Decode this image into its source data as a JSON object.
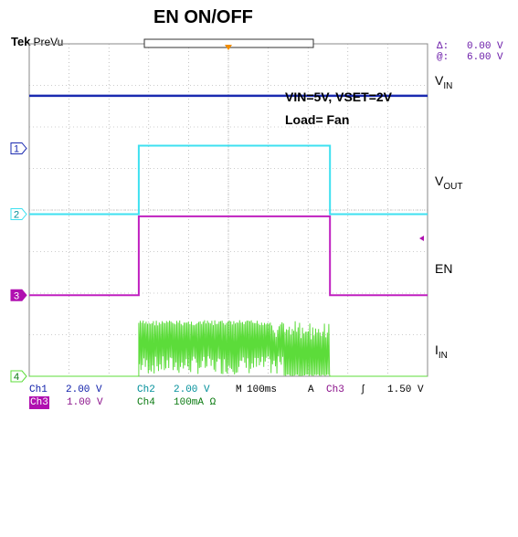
{
  "title": "EN ON/OFF",
  "scope": {
    "brand": "Tek",
    "mode": "PreVu",
    "delta_symbol": "Δ:",
    "delta_value": "0.00 V",
    "at_symbol": "@:",
    "at_value": "6.00 V"
  },
  "colors": {
    "ch1": "#1a2ab0",
    "ch2": "#3ee0f0",
    "ch3": "#c020c0",
    "ch4": "#5cdc3a",
    "trigger": "#f08c00",
    "grid": "#999999"
  },
  "annotations": {
    "line1": "VIN=5V, VSET=2V",
    "line2": "Load= Fan"
  },
  "right_labels": {
    "vin_main": "V",
    "vin_sub": "IN",
    "vout_main": "V",
    "vout_sub": "OUT",
    "en": "EN",
    "iin_main": "I",
    "iin_sub": "IN"
  },
  "markers": {
    "ch1": "1",
    "ch2": "2",
    "ch3": "3",
    "ch4": "4"
  },
  "readouts": {
    "ch1_name": "Ch1",
    "ch1_scale": "2.00 V",
    "ch2_name": "Ch2",
    "ch2_scale": "2.00 V",
    "timebase_prefix": "M",
    "timebase": "100ms",
    "trig_prefix": "A",
    "trig_ch": "Ch3",
    "trig_slope": "ʃ",
    "trig_level": "1.50 V",
    "ch3_name": "Ch3",
    "ch3_scale": "1.00 V",
    "ch4_name": "Ch4",
    "ch4_scale": "100mA Ω"
  },
  "chart_data": {
    "type": "line",
    "x_divisions": 10,
    "y_divisions": 8,
    "timebase_per_div": "100ms",
    "series": [
      {
        "name": "VIN",
        "channel": 1,
        "shape": "constant",
        "level_div": 6.75
      },
      {
        "name": "VOUT",
        "channel": 2,
        "shape": "pulse",
        "low_div": 3.9,
        "high_div": 5.55,
        "rise_div": 2.75,
        "fall_div": 7.55
      },
      {
        "name": "EN",
        "channel": 3,
        "shape": "pulse",
        "low_div": 1.95,
        "high_div": 3.85,
        "rise_div": 2.75,
        "fall_div": 7.55
      },
      {
        "name": "IIN",
        "channel": 4,
        "shape": "burst",
        "low_div": 0.0,
        "high_div": 1.35,
        "start_div": 2.75,
        "end_div": 7.55
      }
    ]
  }
}
